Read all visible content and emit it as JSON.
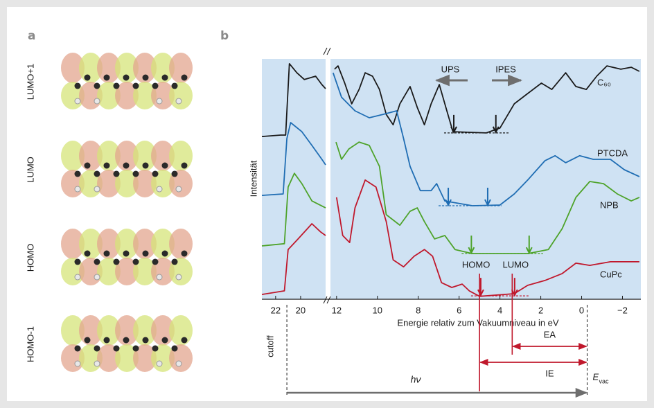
{
  "panel_a": {
    "label": "a",
    "orbitals": [
      "LUMO+1",
      "LUMO",
      "HOMO",
      "HOMO-1"
    ]
  },
  "chart_data": {
    "type": "line",
    "label": "b",
    "xlabel": "Energie relativ zum Vakuumniveau in eV",
    "ylabel": "Intensität",
    "x_segments": [
      {
        "xlim": [
          23.1,
          18.0
        ],
        "xticks": [
          22,
          20
        ]
      },
      {
        "xlim": [
          12.3,
          -2.9
        ],
        "xticks": [
          12,
          10,
          8,
          6,
          4,
          2,
          0,
          {
            "value": -2,
            "label": "−2"
          }
        ]
      }
    ],
    "ylim": [
      0,
      100
    ],
    "background": "#cfe2f3",
    "series": [
      {
        "name": "C₆₀",
        "color": "#1a1a1a",
        "arrows": [
          6.26,
          4.2
        ],
        "baseline": 69.2,
        "x": [
          23.1,
          21.6,
          21.2,
          20.9,
          20.3,
          19.7,
          18.8,
          18.3,
          18.0,
          null,
          12.1,
          11.93,
          11.6,
          11.26,
          10.9,
          10.6,
          10.24,
          9.9,
          9.57,
          9.23,
          8.9,
          8.4,
          8.05,
          7.7,
          7.37,
          6.97,
          6.6,
          6.3,
          4.67,
          4.0,
          3.3,
          2.64,
          1.97,
          1.46,
          0.78,
          0.28,
          -0.23,
          -0.74,
          -1.24,
          -1.92,
          -2.43,
          -2.83
        ],
        "values": [
          67.7,
          68.3,
          68.3,
          98,
          94.2,
          91.4,
          92.8,
          89.3,
          87.6,
          null,
          95.7,
          97.1,
          89.9,
          81.3,
          87.3,
          94.2,
          92.8,
          87.3,
          76.9,
          72.6,
          81.3,
          88.5,
          79.8,
          72.6,
          81.3,
          89.3,
          78.4,
          69.7,
          69.2,
          71.2,
          81.3,
          85.6,
          89.9,
          87.3,
          94.2,
          88.5,
          87.3,
          92.8,
          97.1,
          95.7,
          96.5,
          94.8
        ]
      },
      {
        "name": "PTCDA",
        "color": "#1f6db3",
        "arrows": [
          6.53,
          4.6
        ],
        "baseline": 38.9,
        "x": [
          23.1,
          21.4,
          21.1,
          20.8,
          19.9,
          19.1,
          18.3,
          18.0,
          null,
          12.17,
          11.76,
          11.1,
          10.4,
          9.74,
          9.06,
          8.72,
          8.4,
          7.9,
          7.37,
          7.1,
          6.7,
          5.35,
          4.0,
          3.3,
          2.64,
          1.8,
          1.3,
          0.78,
          0.1,
          -0.57,
          -1.41,
          -2.09,
          -2.83
        ],
        "values": [
          43.2,
          43.8,
          66.9,
          73.5,
          69.7,
          64.0,
          58.2,
          55.9,
          null,
          94.2,
          84.1,
          78.4,
          75.5,
          76.9,
          78.4,
          66.9,
          55.3,
          45.2,
          45.2,
          48.1,
          40.9,
          38.9,
          39.2,
          43.8,
          49.6,
          57.6,
          59.7,
          56.8,
          59.7,
          58.2,
          58.2,
          53.9,
          51.0
        ]
      },
      {
        "name": "NPB",
        "color": "#4ea32a",
        "arrows": [
          5.4,
          2.57
        ],
        "baseline": 19.0,
        "x": [
          23.1,
          21.3,
          21.0,
          20.5,
          19.9,
          19.1,
          18.0,
          null,
          12.03,
          11.76,
          11.4,
          10.9,
          10.4,
          9.9,
          9.57,
          8.9,
          8.4,
          8.05,
          7.7,
          7.2,
          6.7,
          6.2,
          5.35,
          2.64,
          1.63,
          0.95,
          0.28,
          -0.4,
          -1.07,
          -1.75,
          -2.43,
          -2.83
        ],
        "values": [
          22.2,
          23.1,
          46.7,
          52.4,
          48.1,
          40.9,
          38.0,
          null,
          65.4,
          58.2,
          62.5,
          65.4,
          64.0,
          55.3,
          35.2,
          30.8,
          36.6,
          38.0,
          32.3,
          25.1,
          26.5,
          20.7,
          19.0,
          19.0,
          20.7,
          29.4,
          42.4,
          49.0,
          48.1,
          43.8,
          40.9,
          42.4
        ]
      },
      {
        "name": "CuPc",
        "color": "#c0182c",
        "arrows": [
          4.94,
          3.28
        ],
        "baseline": 1.4,
        "x": [
          23.1,
          21.3,
          21.0,
          20.2,
          19.1,
          18.4,
          18.0,
          null,
          12.0,
          11.7,
          11.36,
          11.1,
          10.6,
          10.07,
          9.57,
          9.23,
          8.72,
          8.2,
          7.7,
          7.3,
          6.86,
          6.36,
          5.85,
          5.5,
          5.0,
          3.3,
          2.64,
          1.8,
          0.95,
          0.28,
          -0.4,
          -1.41,
          -2.83
        ],
        "values": [
          2.0,
          3.5,
          20.7,
          25.1,
          31.4,
          28.0,
          26.5,
          null,
          42.4,
          26.5,
          23.6,
          38.0,
          49.6,
          46.7,
          32.3,
          16.4,
          13.5,
          17.9,
          20.7,
          17.9,
          6.9,
          4.9,
          6.3,
          3.5,
          1.2,
          2.3,
          5.8,
          7.8,
          10.7,
          15.0,
          14.1,
          15.6,
          15.6
        ]
      }
    ],
    "annotations": {
      "ups": "UPS",
      "ipes": "IPES",
      "homo": "HOMO",
      "lumo": "LUMO",
      "cutoff": "cutoff",
      "hv": "hν",
      "ea": "EA",
      "ie": "IE",
      "evac": "E",
      "evac_sub": "vac"
    },
    "levels": {
      "cutoff": 21.1,
      "homo": 5.0,
      "lumo": 3.4,
      "vac": -0.27
    }
  }
}
